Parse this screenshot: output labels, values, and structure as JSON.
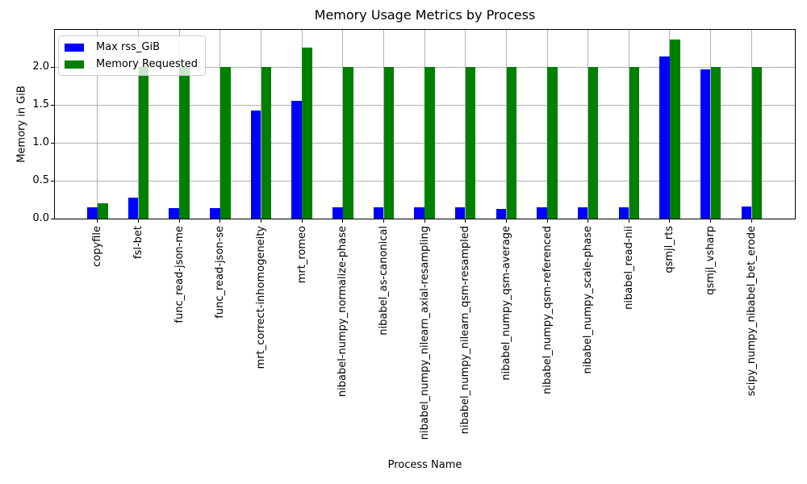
{
  "chart_data": {
    "type": "bar",
    "title": "Memory Usage Metrics by Process",
    "xlabel": "Process Name",
    "ylabel": "Memory in GiB",
    "ylim": [
      0,
      2.5
    ],
    "yticks": [
      "0.0",
      "0.5",
      "1.0",
      "1.5",
      "2.0"
    ],
    "grid": true,
    "legend_position": "upper left",
    "categories": [
      "copyfile",
      "fsl-bet",
      "func_read-json-me",
      "func_read-json-se",
      "mrt_correct-inhomogeneity",
      "mrt_romeo",
      "nibabel-numpy_normalize-phase",
      "nibabel_as-canonical",
      "nibabel_numpy_nilearn_axial-resampling",
      "nibabel_numpy_nilearn_qsm-resampled",
      "nibabel_numpy_qsm-average",
      "nibabel_numpy_qsm-referenced",
      "nibabel_numpy_scale-phase",
      "nibabel_read-nii",
      "qsmjl_rts",
      "qsmjl_vsharp",
      "scipy_numpy_nibabel_bet_erode"
    ],
    "series": [
      {
        "name": "Max rss_GiB",
        "color": "#0000ff",
        "values": [
          0.15,
          0.28,
          0.14,
          0.14,
          1.43,
          1.55,
          0.15,
          0.15,
          0.15,
          0.15,
          0.13,
          0.15,
          0.15,
          0.15,
          2.14,
          1.97,
          0.16
        ]
      },
      {
        "name": "Memory Requested",
        "color": "#008000",
        "values": [
          0.2,
          2.0,
          2.0,
          2.0,
          2.0,
          2.26,
          2.0,
          2.0,
          2.0,
          2.0,
          2.0,
          2.0,
          2.0,
          2.0,
          2.36,
          2.0,
          2.0
        ]
      }
    ],
    "colors": {
      "grid": "#b0b0b0",
      "spine": "#000000",
      "text": "#000000",
      "legend_border": "#cccccc"
    }
  }
}
